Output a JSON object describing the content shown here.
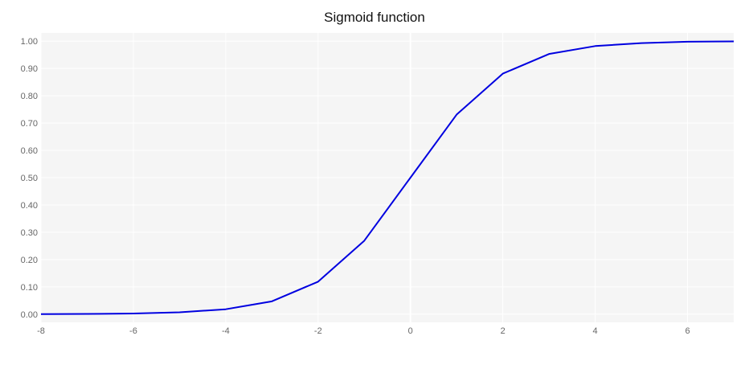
{
  "chart_data": {
    "type": "line",
    "title": "Sigmoid function",
    "xlabel": "",
    "ylabel": "",
    "xlim": [
      -8,
      7
    ],
    "ylim": [
      -0.03,
      1.03
    ],
    "x_ticks": [
      -8,
      -6,
      -4,
      -2,
      0,
      2,
      4,
      6
    ],
    "x_tick_labels": [
      "-8",
      "-6",
      "-4",
      "-2",
      "0",
      "2",
      "4",
      "6"
    ],
    "y_ticks": [
      0,
      0.1,
      0.2,
      0.3,
      0.4,
      0.5,
      0.6,
      0.7,
      0.8,
      0.9,
      1.0
    ],
    "y_tick_labels": [
      "0.00",
      "0.10",
      "0.20",
      "0.30",
      "0.40",
      "0.50",
      "0.60",
      "0.70",
      "0.80",
      "0.90",
      "1.00"
    ],
    "grid": true,
    "series": [
      {
        "color": "#0000e0",
        "x": [
          -8,
          -7,
          -6,
          -5,
          -4,
          -3,
          -2,
          -1,
          0,
          1,
          2,
          3,
          4,
          5,
          6,
          7
        ],
        "y": [
          0.0003,
          0.0009,
          0.0025,
          0.0067,
          0.018,
          0.047,
          0.119,
          0.269,
          0.5,
          0.731,
          0.881,
          0.953,
          0.982,
          0.993,
          0.998,
          0.999
        ]
      }
    ],
    "colors": {
      "plot_background": "#f5f5f5",
      "grid": "#ffffff",
      "tick_label": "#666666"
    }
  }
}
